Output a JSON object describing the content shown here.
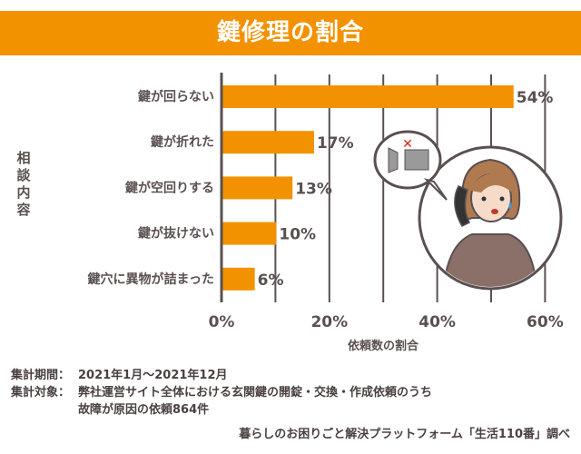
{
  "chart_data": {
    "type": "bar",
    "orientation": "horizontal",
    "title": "鍵修理の割合",
    "xlabel": "依頼数の割合",
    "ylabel": "相談内容",
    "categories": [
      "鍵が回らない",
      "鍵が折れた",
      "鍵が空回りする",
      "鍵が抜けない",
      "鍵穴に異物が詰まった"
    ],
    "values": [
      54,
      17,
      13,
      10,
      6
    ],
    "data_labels": [
      "54%",
      "17%",
      "13%",
      "10%",
      "6%"
    ],
    "xlim": [
      0,
      60
    ],
    "xticks": [
      "0%",
      "20%",
      "40%",
      "60%"
    ],
    "grid": "vertical every 10%",
    "bar_color": "#f39200",
    "title_band_color": "#f39200"
  },
  "notes": {
    "period_label": "集計期間：",
    "period_value": "2021年1月～2021年12月",
    "target_label": "集計対象：",
    "target_value_line1": "弊社運営サイト全体における玄関鍵の開錠・交換・作成依頼のうち",
    "target_value_line2": "故障が原因の依頼864件"
  },
  "source": "暮らしのお困りごと解決プラットフォーム「生活110番」調べ",
  "illustration": {
    "icons": [
      "woman-on-phone-icon",
      "broken-key-icon",
      "red-x-icon"
    ]
  }
}
